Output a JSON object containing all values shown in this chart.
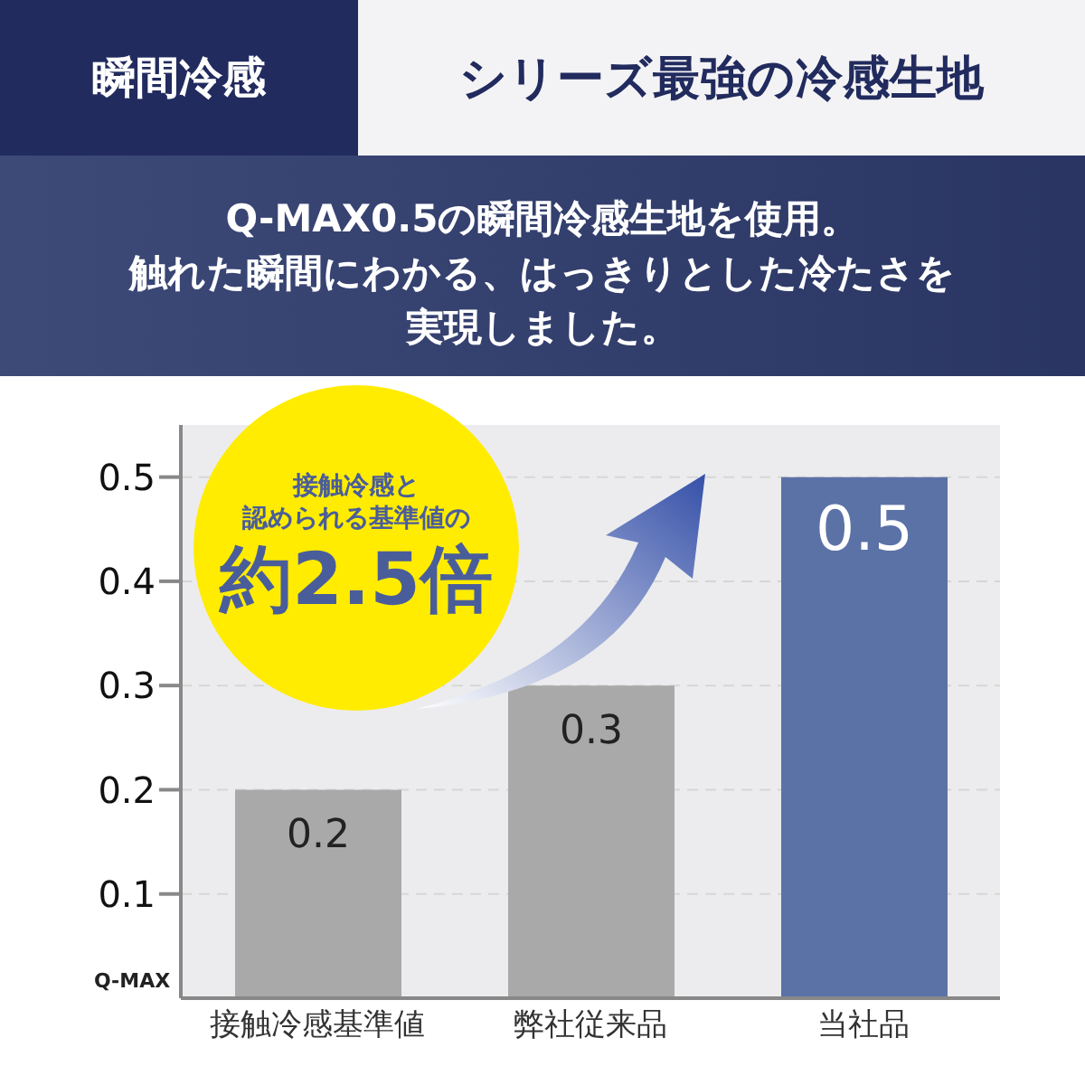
{
  "chart_data": {
    "type": "bar",
    "title": "瞬間冷感",
    "subtitle": "シリーズ最強の冷感生地",
    "annotations": [
      "Q-MAX0.5の瞬間冷感生地を使用。",
      "触れた瞬間にわかる、はっきりとした冷たさを",
      "実現しました。",
      "接触冷感と",
      "認められる基準値の",
      "約2.5倍"
    ],
    "ylabel": "Q-MAX",
    "categories": [
      "接触冷感基準値",
      "弊社従来品",
      "当社品"
    ],
    "values": [
      0.2,
      0.3,
      0.5
    ],
    "colors": [
      "#a9a9a9",
      "#a9a9a9",
      "#5b72a6"
    ],
    "ylim": [
      0,
      0.55
    ],
    "yticks": [
      0.1,
      0.2,
      0.3,
      0.4,
      0.5
    ],
    "grid": "y",
    "data_labels": true
  }
}
